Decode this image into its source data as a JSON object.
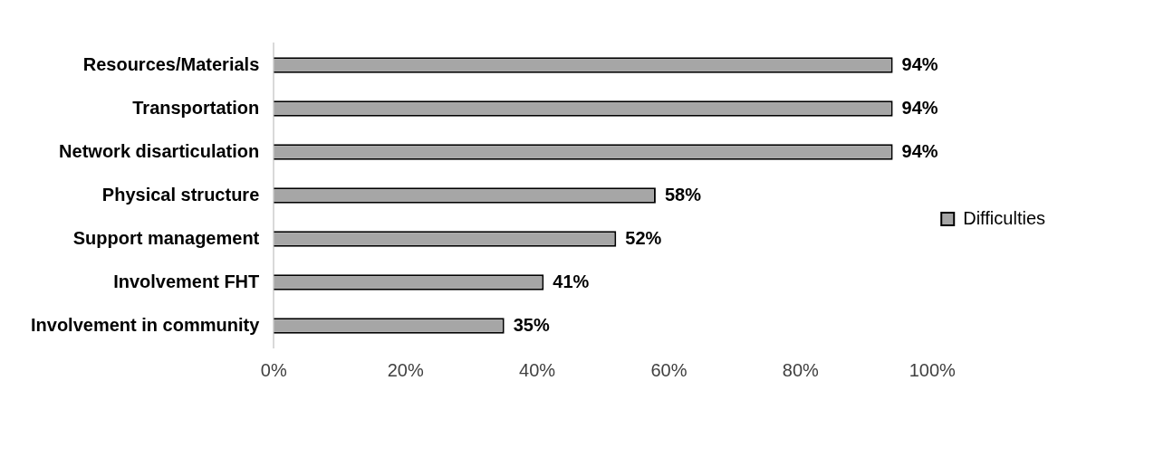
{
  "chart_data": {
    "type": "bar",
    "orientation": "horizontal",
    "categories": [
      "Resources/Materials",
      "Transportation",
      "Network disarticulation",
      "Physical structure",
      "Support management",
      "Involvement FHT",
      "Involvement in community"
    ],
    "series": [
      {
        "name": "Difficulties",
        "color": "#a6a6a6",
        "values": [
          94,
          94,
          94,
          58,
          52,
          41,
          35
        ],
        "value_labels": [
          "94%",
          "94%",
          "94%",
          "58%",
          "52%",
          "41%",
          "35%"
        ]
      }
    ],
    "xlim": [
      0,
      100
    ],
    "xticks": [
      {
        "value": 0,
        "label": "0%"
      },
      {
        "value": 20,
        "label": "20%"
      },
      {
        "value": 40,
        "label": "40%"
      },
      {
        "value": 60,
        "label": "60%"
      },
      {
        "value": 80,
        "label": "80%"
      },
      {
        "value": 100,
        "label": "100%"
      }
    ],
    "grid": false,
    "legend": "right"
  }
}
